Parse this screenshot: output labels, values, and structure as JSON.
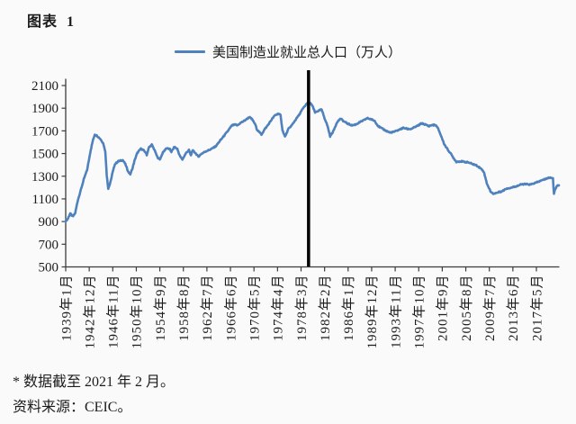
{
  "page": {
    "background": "#fafafa"
  },
  "title": "图表  1",
  "legend": {
    "label": "美国制造业就业总人口（万人）",
    "line_color": "#4f81bd"
  },
  "footer": {
    "note": "* 数据截至 2021 年 2 月。",
    "source": "资料来源：CEIC。"
  },
  "chart_data": {
    "type": "line",
    "title": "美国制造业就业总人口（万人）",
    "unit": "万人",
    "xlabel": "",
    "ylabel": "",
    "ylim": [
      500,
      2100
    ],
    "y_ticks": [
      2100,
      1900,
      1700,
      1500,
      1300,
      1100,
      900,
      700,
      500
    ],
    "x_start": "1939-01",
    "x_end": "2021-02",
    "x_tick_interval_months": 47,
    "x_tick_labels": [
      "1939年1月",
      "1942年12月",
      "1946年11月",
      "1950年10月",
      "1954年9月",
      "1958年8月",
      "1962年7月",
      "1966年6月",
      "1970年5月",
      "1974年4月",
      "1978年3月",
      "1982年2月",
      "1986年1月",
      "1989年12月",
      "1993年11月",
      "1997年10月",
      "2001年9月",
      "2005年8月",
      "2009年7月",
      "2013年6月",
      "2017年5月"
    ],
    "grid": false,
    "legend_position": "top-center",
    "line_color": "#4f81bd",
    "axis_color": "#3c3c3c",
    "annotation_vline": {
      "date": "1979-06",
      "color": "#000000"
    },
    "noise_amplitude": 5,
    "points": [
      [
        "1939-01",
        905
      ],
      [
        "1939-05",
        922
      ],
      [
        "1939-10",
        972
      ],
      [
        "1940-01",
        955
      ],
      [
        "1940-04",
        948
      ],
      [
        "1940-08",
        975
      ],
      [
        "1941-01",
        1085
      ],
      [
        "1941-07",
        1175
      ],
      [
        "1942-01",
        1270
      ],
      [
        "1942-08",
        1360
      ],
      [
        "1943-02",
        1510
      ],
      [
        "1943-07",
        1610
      ],
      [
        "1943-11",
        1668
      ],
      [
        "1944-04",
        1655
      ],
      [
        "1944-10",
        1630
      ],
      [
        "1945-04",
        1590
      ],
      [
        "1945-08",
        1520
      ],
      [
        "1945-11",
        1310
      ],
      [
        "1946-02",
        1190
      ],
      [
        "1946-06",
        1240
      ],
      [
        "1946-10",
        1320
      ],
      [
        "1947-03",
        1405
      ],
      [
        "1947-10",
        1432
      ],
      [
        "1948-07",
        1442
      ],
      [
        "1948-12",
        1408
      ],
      [
        "1949-06",
        1338
      ],
      [
        "1949-10",
        1318
      ],
      [
        "1950-02",
        1365
      ],
      [
        "1950-07",
        1445
      ],
      [
        "1950-12",
        1505
      ],
      [
        "1951-07",
        1542
      ],
      [
        "1951-12",
        1530
      ],
      [
        "1952-04",
        1512
      ],
      [
        "1952-07",
        1488
      ],
      [
        "1952-11",
        1552
      ],
      [
        "1953-05",
        1578
      ],
      [
        "1953-11",
        1525
      ],
      [
        "1954-04",
        1468
      ],
      [
        "1954-09",
        1448
      ],
      [
        "1955-03",
        1508
      ],
      [
        "1955-10",
        1548
      ],
      [
        "1956-05",
        1538
      ],
      [
        "1956-08",
        1515
      ],
      [
        "1957-02",
        1558
      ],
      [
        "1957-08",
        1540
      ],
      [
        "1958-01",
        1478
      ],
      [
        "1958-06",
        1447
      ],
      [
        "1959-01",
        1502
      ],
      [
        "1959-07",
        1532
      ],
      [
        "1959-11",
        1482
      ],
      [
        "1960-02",
        1528
      ],
      [
        "1960-08",
        1505
      ],
      [
        "1961-02",
        1472
      ],
      [
        "1961-08",
        1498
      ],
      [
        "1962-05",
        1520
      ],
      [
        "1963-03",
        1538
      ],
      [
        "1964-01",
        1565
      ],
      [
        "1964-09",
        1612
      ],
      [
        "1965-05",
        1655
      ],
      [
        "1966-01",
        1700
      ],
      [
        "1966-09",
        1748
      ],
      [
        "1967-04",
        1755
      ],
      [
        "1967-08",
        1748
      ],
      [
        "1968-02",
        1770
      ],
      [
        "1968-10",
        1790
      ],
      [
        "1969-08",
        1822
      ],
      [
        "1970-02",
        1798
      ],
      [
        "1970-08",
        1752
      ],
      [
        "1970-11",
        1712
      ],
      [
        "1971-03",
        1692
      ],
      [
        "1971-08",
        1668
      ],
      [
        "1972-02",
        1712
      ],
      [
        "1972-09",
        1752
      ],
      [
        "1973-04",
        1798
      ],
      [
        "1973-11",
        1838
      ],
      [
        "1974-06",
        1852
      ],
      [
        "1974-10",
        1838
      ],
      [
        "1975-02",
        1705
      ],
      [
        "1975-07",
        1648
      ],
      [
        "1976-02",
        1718
      ],
      [
        "1976-09",
        1752
      ],
      [
        "1977-04",
        1798
      ],
      [
        "1977-11",
        1840
      ],
      [
        "1978-06",
        1892
      ],
      [
        "1979-01",
        1932
      ],
      [
        "1979-06",
        1956
      ],
      [
        "1980-01",
        1928
      ],
      [
        "1980-07",
        1862
      ],
      [
        "1981-02",
        1878
      ],
      [
        "1981-08",
        1888
      ],
      [
        "1982-02",
        1812
      ],
      [
        "1982-08",
        1742
      ],
      [
        "1983-01",
        1652
      ],
      [
        "1983-08",
        1702
      ],
      [
        "1984-03",
        1778
      ],
      [
        "1984-10",
        1808
      ],
      [
        "1985-05",
        1782
      ],
      [
        "1986-01",
        1762
      ],
      [
        "1986-09",
        1748
      ],
      [
        "1987-05",
        1758
      ],
      [
        "1988-01",
        1778
      ],
      [
        "1988-09",
        1795
      ],
      [
        "1989-03",
        1812
      ],
      [
        "1989-11",
        1802
      ],
      [
        "1990-06",
        1788
      ],
      [
        "1991-01",
        1742
      ],
      [
        "1991-08",
        1722
      ],
      [
        "1992-04",
        1702
      ],
      [
        "1993-01",
        1685
      ],
      [
        "1993-09",
        1692
      ],
      [
        "1994-06",
        1708
      ],
      [
        "1995-03",
        1726
      ],
      [
        "1995-11",
        1718
      ],
      [
        "1996-06",
        1716
      ],
      [
        "1997-02",
        1732
      ],
      [
        "1997-09",
        1748
      ],
      [
        "1998-04",
        1766
      ],
      [
        "1998-11",
        1756
      ],
      [
        "1999-06",
        1742
      ],
      [
        "2000-01",
        1752
      ],
      [
        "2000-08",
        1750
      ],
      [
        "2001-01",
        1718
      ],
      [
        "2001-07",
        1652
      ],
      [
        "2002-01",
        1582
      ],
      [
        "2002-08",
        1535
      ],
      [
        "2003-02",
        1498
      ],
      [
        "2003-08",
        1458
      ],
      [
        "2004-01",
        1427
      ],
      [
        "2004-09",
        1432
      ],
      [
        "2005-05",
        1426
      ],
      [
        "2006-01",
        1422
      ],
      [
        "2006-09",
        1408
      ],
      [
        "2007-05",
        1396
      ],
      [
        "2008-01",
        1372
      ],
      [
        "2008-08",
        1340
      ],
      [
        "2009-02",
        1238
      ],
      [
        "2009-09",
        1168
      ],
      [
        "2010-02",
        1146
      ],
      [
        "2010-09",
        1152
      ],
      [
        "2011-05",
        1164
      ],
      [
        "2011-09",
        1168
      ],
      [
        "2012-05",
        1192
      ],
      [
        "2013-02",
        1198
      ],
      [
        "2014-01",
        1212
      ],
      [
        "2014-11",
        1228
      ],
      [
        "2015-08",
        1230
      ],
      [
        "2016-05",
        1226
      ],
      [
        "2017-06",
        1246
      ],
      [
        "2018-03",
        1262
      ],
      [
        "2018-11",
        1276
      ],
      [
        "2019-07",
        1288
      ],
      [
        "2020-02",
        1285
      ],
      [
        "2020-04",
        1140
      ],
      [
        "2020-06",
        1185
      ],
      [
        "2020-10",
        1212
      ],
      [
        "2021-02",
        1220
      ]
    ]
  }
}
